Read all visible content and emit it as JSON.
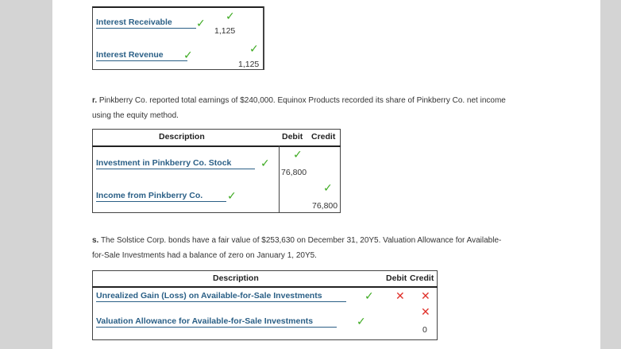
{
  "entry_q": {
    "rows": [
      {
        "account": "Interest Receivable",
        "debit": "1,125"
      },
      {
        "account": "Interest Revenue",
        "credit": "1,125"
      }
    ]
  },
  "entry_r": {
    "letter": "r.",
    "text_line1": "Pinkberry Co. reported total earnings of $240,000. Equinox Products recorded its share of Pinkberry Co. net income",
    "text_line2": "using the equity method.",
    "headers": {
      "description": "Description",
      "debit": "Debit",
      "credit": "Credit"
    },
    "rows": [
      {
        "account": "Investment in Pinkberry Co. Stock",
        "debit": "76,800"
      },
      {
        "account": "Income from Pinkberry Co.",
        "credit": "76,800"
      }
    ]
  },
  "entry_s": {
    "letter": "s.",
    "text_line1": "The Solstice Corp. bonds have a fair value of $253,630 on December 31, 20Y5. Valuation Allowance for Available-",
    "text_line2": "for-Sale Investments had a balance of zero on January 1, 20Y5.",
    "headers": {
      "description": "Description",
      "debit": "Debit",
      "credit": "Credit"
    },
    "rows": [
      {
        "account": "Unrealized Gain (Loss) on Available-for-Sale Investments"
      },
      {
        "account": "Valuation Allowance for Available-for-Sale Investments",
        "credit": "0"
      }
    ]
  },
  "icons": {
    "check": "✓",
    "cross": "✕"
  },
  "colors": {
    "check": "#3daa21",
    "cross": "#e0302a",
    "account": "#2a5f86"
  }
}
